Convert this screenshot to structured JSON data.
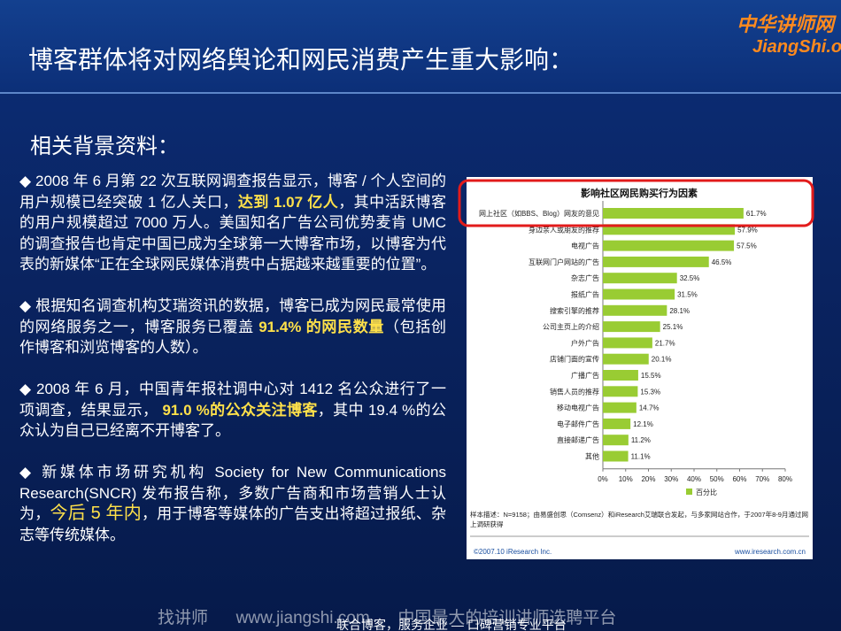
{
  "header": {
    "title": "博客群体将对网络舆论和网民消费产生重大影响：",
    "logo_cn": "中华讲师网",
    "logo_en": "JiangShi.or"
  },
  "subtitle": "相关背景资料：",
  "paragraphs": [
    [
      {
        "text": "◆ 2008 年 6 月第 22 次互联网调查报告显示，博客 / 个人空间的用户规模已经突破 1 亿人关口，",
        "style": "normal"
      },
      {
        "text": "达到 1.07 亿人",
        "style": "highlight"
      },
      {
        "text": "，其中活跃博客的用户规模超过 7000 万人。美国知名广告公司优势麦肯 UMC 的调查报告也肯定中国已成为全球第一大博客市场，以博客为代表的新媒体“正在全球网民媒体消费中占据越来越重要的位置”。",
        "style": "normal"
      }
    ],
    [
      {
        "text": "◆  根据知名调查机构艾瑞资讯的数据，博客已成为网民最常使用的网络服务之一，博客服务已覆盖 ",
        "style": "normal"
      },
      {
        "text": "91.4% 的网民数量",
        "style": "highlight"
      },
      {
        "text": "（包括创作博客和浏览博客的人数）。",
        "style": "normal"
      }
    ],
    [
      {
        "text": "◆ 2008 年 6 月，中国青年报社调中心对 1412 名公众进行了一项调查，结果显示，",
        "style": "normal"
      },
      {
        "text": " 91.0 %的公众关注博客",
        "style": "highlight"
      },
      {
        "text": "，其中 19.4 %的公众认为自己已经离不开博客了。",
        "style": "normal"
      }
    ],
    [
      {
        "text": "◆  新媒体市场研究机构 Society for New Communications Research(SNCR) 发布报告称，多数广告商和市场营销人士认为，",
        "style": "normal"
      },
      {
        "text": "今后 5 年内",
        "style": "highlight-large"
      },
      {
        "text": "，用于博客等媒体的广告支出将超过报纸、杂志等传统媒体。",
        "style": "normal"
      }
    ]
  ],
  "chart_data": {
    "type": "bar",
    "orientation": "horizontal",
    "title": "影响社区网民购买行为因素",
    "categories": [
      "网上社区（如BBS、Blog）网友的意见",
      "身边亲人或朋友的推荐",
      "电视广告",
      "互联网门户网站的广告",
      "杂志广告",
      "报纸广告",
      "搜索引擎的推荐",
      "公司主页上的介绍",
      "户外广告",
      "店铺门面的宣传",
      "广播广告",
      "销售人员的推荐",
      "移动电视广告",
      "电子邮件广告",
      "直接邮递广告",
      "其他"
    ],
    "series": [
      {
        "name": "百分比",
        "color": "#99cc33",
        "values": [
          61.7,
          57.9,
          57.5,
          46.5,
          32.5,
          31.5,
          28.1,
          25.1,
          21.7,
          20.1,
          15.5,
          15.3,
          14.7,
          12.1,
          11.2,
          11.1
        ],
        "value_labels": [
          "61.7%",
          "57.9%",
          "57.5%",
          "46.5%",
          "32.5%",
          "31.5%",
          "28.1%",
          "25.1%",
          "21.7%",
          "20.1%",
          "15.5%",
          "15.3%",
          "14.7%",
          "12.1%",
          "11.2%",
          "11.1%"
        ]
      }
    ],
    "xlim": [
      0,
      80
    ],
    "xticks": [
      {
        "value": 0,
        "label": "0%"
      },
      {
        "value": 10,
        "label": "10%"
      },
      {
        "value": 20,
        "label": "20%"
      },
      {
        "value": 30,
        "label": "30%"
      },
      {
        "value": 40,
        "label": "40%"
      },
      {
        "value": 50,
        "label": "50%"
      },
      {
        "value": 60,
        "label": "60%"
      },
      {
        "value": 70,
        "label": "70%"
      },
      {
        "value": 80,
        "label": "80%"
      }
    ],
    "note": "样本描述：N=9158；由易盛创思（Comsenz）和iResearch艾瑞联合发起，与多家网站合作，于2007年8-9月通过网上调研获得",
    "source": "©2007.10 iResearch Inc.",
    "website": "www.iresearch.com.cn"
  },
  "footer": {
    "watermark": "找讲师      www.jiangshi.com      中国最大的培训讲师选聘平台",
    "slogan": "联合博客，服务企业 — 口碑营销专业平台"
  }
}
